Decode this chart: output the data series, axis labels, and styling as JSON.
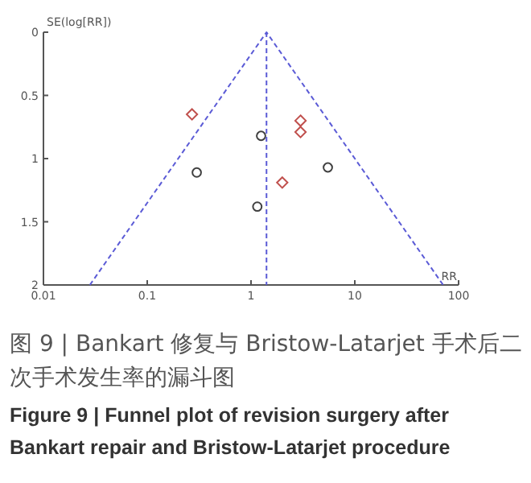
{
  "chart_data": {
    "type": "scatter",
    "title": "图 9 | Bankart 修复与 Bristow-Latarjet 手术后二次手术发生率的漏斗图",
    "subtitle": "Figure 9 | Funnel plot of revision surgery after Bankart repair and Bristow-Latarjet procedure",
    "xlabel": "RR",
    "ylabel": "SE(log[RR])",
    "log": "x",
    "xlim": [
      0.01,
      100
    ],
    "ylim": [
      2,
      0
    ],
    "xticks": [
      0.01,
      0.1,
      1,
      10,
      100
    ],
    "yticks": [
      0,
      0.5,
      1,
      1.5,
      2
    ],
    "grid": false,
    "series": [
      {
        "marker": "diamond",
        "color": "#c0504d",
        "x": [
          0.27,
          3.0,
          3.0,
          2.0
        ],
        "values": [
          0.65,
          0.7,
          0.79,
          1.19
        ]
      },
      {
        "marker": "circle",
        "color": "#404040",
        "x": [
          1.25,
          0.3,
          5.5,
          1.15
        ],
        "values": [
          0.82,
          1.11,
          1.07,
          1.38
        ]
      },
      {
        "type": "line",
        "line_style": "dashed",
        "color": "#5b5bd6",
        "x": [
          0.028,
          1.41,
          71
        ],
        "values": [
          2,
          0,
          2
        ]
      },
      {
        "type": "line",
        "line_style": "dashed",
        "color": "#5b5bd6",
        "x": [
          1.41,
          1.41
        ],
        "values": [
          0,
          2
        ]
      }
    ]
  }
}
